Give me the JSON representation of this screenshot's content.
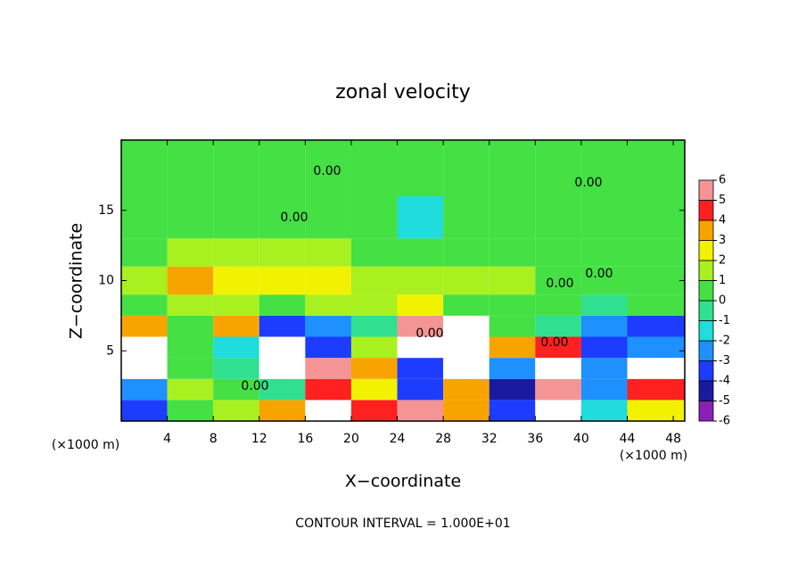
{
  "chart_data": {
    "type": "heatmap",
    "title": "zonal velocity",
    "xlabel": "X−coordinate",
    "ylabel": "Z−coordinate",
    "x_unit": "(×1000 m)",
    "y_unit": "(×1000 m)",
    "footer": "CONTOUR INTERVAL = 1.000E+01",
    "contour_label": "0.00",
    "xlim": [
      0,
      49
    ],
    "ylim": [
      0,
      20
    ],
    "xticks": [
      4,
      8,
      12,
      16,
      20,
      24,
      28,
      32,
      36,
      40,
      44,
      48
    ],
    "yticks": [
      5,
      10,
      15
    ],
    "x_edges": [
      0,
      4,
      8,
      12,
      16,
      20,
      24,
      28,
      32,
      36,
      40,
      44,
      49
    ],
    "y_edges": [
      0,
      1.5,
      3,
      4.5,
      6,
      7.5,
      9,
      11,
      13,
      16,
      20
    ],
    "z": [
      [
        -4,
        0,
        1,
        3,
        7,
        4,
        5,
        3,
        -4,
        7,
        -2,
        2
      ],
      [
        -3,
        1,
        0,
        -1,
        4,
        2,
        -4,
        3,
        -5,
        5,
        -3,
        4
      ],
      [
        6,
        0,
        -1,
        7,
        5,
        3,
        -4,
        7,
        -3,
        7,
        -3,
        6
      ],
      [
        7,
        0,
        -2,
        6,
        -4,
        1,
        7,
        7,
        3,
        4,
        -4,
        -3
      ],
      [
        3,
        0,
        3,
        -4,
        -3,
        -1,
        5,
        6,
        0,
        -1,
        -3,
        -4
      ],
      [
        0,
        1,
        1,
        0,
        1,
        1,
        2,
        0,
        0,
        0,
        -1,
        0
      ],
      [
        1,
        3,
        2,
        2,
        2,
        1,
        1,
        1,
        1,
        0,
        0,
        0
      ],
      [
        0,
        1,
        1,
        1,
        1,
        0,
        0,
        0,
        0,
        0,
        0,
        0
      ],
      [
        0,
        0,
        0,
        0,
        0,
        0,
        -2,
        0,
        0,
        0,
        0,
        0
      ],
      [
        0,
        0,
        0,
        0,
        0,
        0,
        0,
        0,
        0,
        0,
        0,
        0
      ]
    ],
    "levels": [
      -6,
      -5,
      -4,
      -3,
      -2,
      -1,
      0,
      1,
      2,
      3,
      4,
      5,
      6
    ],
    "colors": [
      "#8a20b8",
      "#1a1aa0",
      "#1c3cff",
      "#1e90ff",
      "#20dcdc",
      "#30e090",
      "#44e044",
      "#a8f020",
      "#f2f200",
      "#f8a400",
      "#ff2020",
      "#f49494"
    ],
    "over_color": "#ffffff"
  }
}
